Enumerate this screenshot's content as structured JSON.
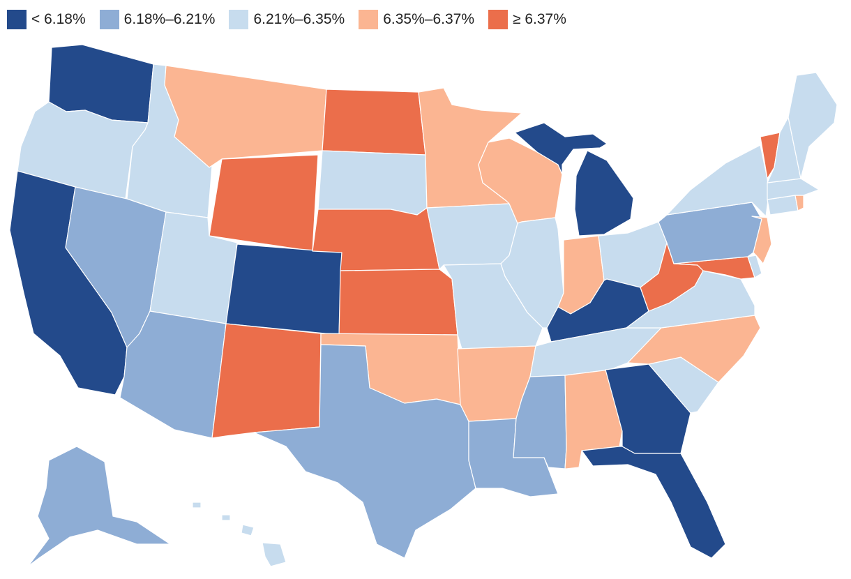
{
  "legend": {
    "bins": [
      {
        "label": "< 6.18%",
        "color": "#234a8b",
        "key": "lt618"
      },
      {
        "label": "6.18%–6.21%",
        "color": "#8eadd5",
        "key": "b618"
      },
      {
        "label": "6.21%–6.35%",
        "color": "#c7dcee",
        "key": "b621"
      },
      {
        "label": "6.35%–6.37%",
        "color": "#fbb592",
        "key": "b635"
      },
      {
        "label": "≥ 6.37%",
        "color": "#eb6e4b",
        "key": "ge637"
      }
    ]
  },
  "map": {
    "states": [
      {
        "code": "WA",
        "bin": "lt618"
      },
      {
        "code": "OR",
        "bin": "b621"
      },
      {
        "code": "CA",
        "bin": "lt618"
      },
      {
        "code": "ID",
        "bin": "b621"
      },
      {
        "code": "NV",
        "bin": "b618"
      },
      {
        "code": "MT",
        "bin": "b635"
      },
      {
        "code": "WY",
        "bin": "ge637"
      },
      {
        "code": "UT",
        "bin": "b621"
      },
      {
        "code": "AZ",
        "bin": "b618"
      },
      {
        "code": "CO",
        "bin": "lt618"
      },
      {
        "code": "NM",
        "bin": "ge637"
      },
      {
        "code": "ND",
        "bin": "ge637"
      },
      {
        "code": "SD",
        "bin": "b621"
      },
      {
        "code": "NE",
        "bin": "ge637"
      },
      {
        "code": "KS",
        "bin": "ge637"
      },
      {
        "code": "OK",
        "bin": "b635"
      },
      {
        "code": "TX",
        "bin": "b618"
      },
      {
        "code": "MN",
        "bin": "b635"
      },
      {
        "code": "IA",
        "bin": "b621"
      },
      {
        "code": "MO",
        "bin": "b621"
      },
      {
        "code": "AR",
        "bin": "b635"
      },
      {
        "code": "LA",
        "bin": "b618"
      },
      {
        "code": "WI",
        "bin": "b635"
      },
      {
        "code": "IL",
        "bin": "b621"
      },
      {
        "code": "MI",
        "bin": "lt618"
      },
      {
        "code": "IN",
        "bin": "b635"
      },
      {
        "code": "OH",
        "bin": "b621"
      },
      {
        "code": "KY",
        "bin": "lt618"
      },
      {
        "code": "TN",
        "bin": "b621"
      },
      {
        "code": "MS",
        "bin": "b618"
      },
      {
        "code": "AL",
        "bin": "b635"
      },
      {
        "code": "GA",
        "bin": "lt618"
      },
      {
        "code": "FL",
        "bin": "lt618"
      },
      {
        "code": "SC",
        "bin": "b621"
      },
      {
        "code": "NC",
        "bin": "b635"
      },
      {
        "code": "VA",
        "bin": "b621"
      },
      {
        "code": "WV",
        "bin": "ge637"
      },
      {
        "code": "MD",
        "bin": "ge637"
      },
      {
        "code": "DE",
        "bin": "b621"
      },
      {
        "code": "PA",
        "bin": "b618"
      },
      {
        "code": "NJ",
        "bin": "b635"
      },
      {
        "code": "NY",
        "bin": "b621"
      },
      {
        "code": "CT",
        "bin": "b621"
      },
      {
        "code": "RI",
        "bin": "b635"
      },
      {
        "code": "MA",
        "bin": "b621"
      },
      {
        "code": "VT",
        "bin": "ge637"
      },
      {
        "code": "NH",
        "bin": "b621"
      },
      {
        "code": "ME",
        "bin": "b621"
      },
      {
        "code": "AK",
        "bin": "b618"
      },
      {
        "code": "HI",
        "bin": "b621"
      }
    ]
  }
}
